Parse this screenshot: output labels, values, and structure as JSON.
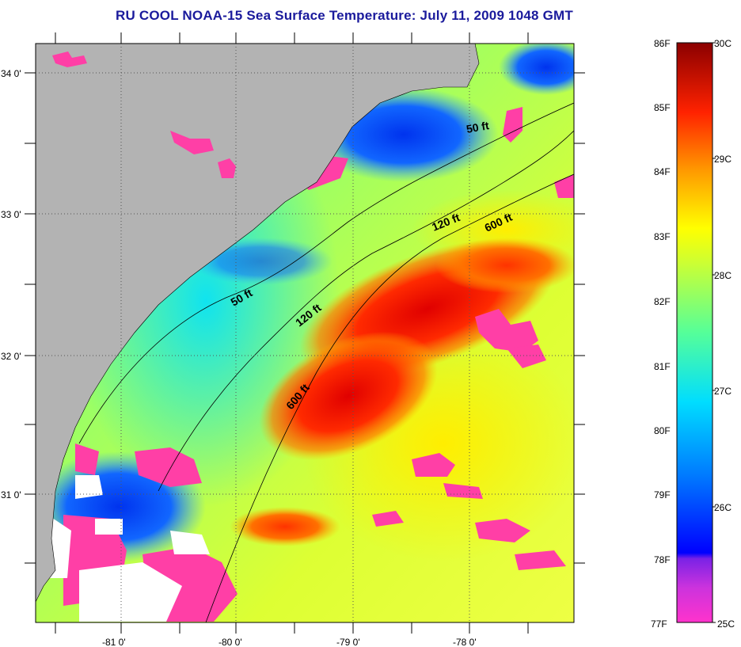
{
  "title": "RU COOL  NOAA-15  Sea Surface Temperature:  July 11, 2009 1048 GMT",
  "axes": {
    "lat_labels": [
      "34 0'",
      "33 0'",
      "32 0'",
      "31 0'"
    ],
    "lon_labels": [
      "-81 0'",
      "-80 0'",
      "-79 0'",
      "-78 0'"
    ]
  },
  "isobaths": {
    "shelf_50": "50 ft",
    "shelf_50_b": "50 ft",
    "mid_120": "120 ft",
    "mid_120_b": "120 ft",
    "edge_600": "600 ft",
    "edge_600_b": "600 ft"
  },
  "colorbar": {
    "fahrenheit": [
      "86F",
      "85F",
      "84F",
      "83F",
      "82F",
      "81F",
      "80F",
      "79F",
      "78F",
      "77F"
    ],
    "celsius": [
      "30C",
      "29C",
      "28C",
      "27C",
      "26C",
      "25C"
    ],
    "colors": [
      "#ff33cc",
      "#8a2be2",
      "#0000ff",
      "#0077ff",
      "#00e5ff",
      "#a6ff4d",
      "#ffff00",
      "#ff9900",
      "#ff0000",
      "#8b0000"
    ]
  },
  "colors": {
    "land": "#b3b3b3",
    "cloud": "#ff3fa6",
    "missing": "#ffffff",
    "title": "#1a1a9c"
  }
}
